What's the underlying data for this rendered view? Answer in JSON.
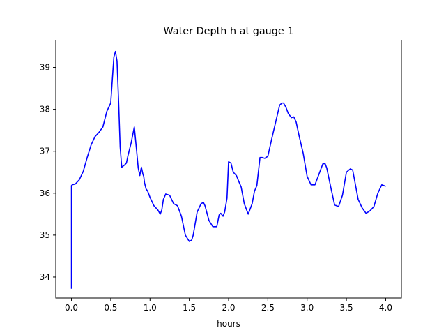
{
  "chart_data": {
    "type": "line",
    "title": "Water Depth h at gauge 1",
    "xlabel": "hours",
    "ylabel": "",
    "xlim": [
      -0.2,
      4.2
    ],
    "ylim": [
      33.5,
      39.65
    ],
    "xticks": [
      0.0,
      0.5,
      1.0,
      1.5,
      2.0,
      2.5,
      3.0,
      3.5,
      4.0
    ],
    "xtick_labels": [
      "0.0",
      "0.5",
      "1.0",
      "1.5",
      "2.0",
      "2.5",
      "3.0",
      "3.5",
      "4.0"
    ],
    "yticks": [
      34,
      35,
      36,
      37,
      38,
      39
    ],
    "ytick_labels": [
      "34",
      "35",
      "36",
      "37",
      "38",
      "39"
    ],
    "grid": false,
    "legend": "none",
    "series": [
      {
        "color": "#0000ff",
        "x": [
          0.0,
          0.0,
          0.01,
          0.05,
          0.1,
          0.15,
          0.2,
          0.25,
          0.3,
          0.35,
          0.4,
          0.45,
          0.5,
          0.52,
          0.54,
          0.56,
          0.58,
          0.6,
          0.62,
          0.64,
          0.66,
          0.68,
          0.7,
          0.72,
          0.74,
          0.76,
          0.8,
          0.83,
          0.85,
          0.87,
          0.89,
          0.91,
          0.92,
          0.93,
          0.95,
          0.97,
          1.0,
          1.05,
          1.1,
          1.13,
          1.15,
          1.17,
          1.2,
          1.25,
          1.3,
          1.35,
          1.4,
          1.45,
          1.5,
          1.53,
          1.55,
          1.6,
          1.65,
          1.68,
          1.7,
          1.75,
          1.8,
          1.85,
          1.88,
          1.9,
          1.93,
          1.95,
          1.98,
          2.0,
          2.03,
          2.06,
          2.1,
          2.13,
          2.16,
          2.2,
          2.25,
          2.3,
          2.33,
          2.36,
          2.4,
          2.43,
          2.46,
          2.5,
          2.55,
          2.6,
          2.65,
          2.68,
          2.7,
          2.73,
          2.76,
          2.8,
          2.83,
          2.86,
          2.9,
          2.95,
          3.0,
          3.05,
          3.1,
          3.15,
          3.2,
          3.23,
          3.25,
          3.3,
          3.35,
          3.4,
          3.45,
          3.5,
          3.55,
          3.58,
          3.6,
          3.65,
          3.7,
          3.75,
          3.8,
          3.85,
          3.9,
          3.95,
          3.98,
          4.0
        ],
        "values": [
          33.72,
          36.18,
          36.2,
          36.22,
          36.32,
          36.52,
          36.85,
          37.15,
          37.35,
          37.45,
          37.58,
          37.95,
          38.15,
          38.7,
          39.25,
          39.38,
          39.15,
          38.2,
          37.1,
          36.62,
          36.65,
          36.68,
          36.72,
          36.9,
          37.05,
          37.2,
          37.58,
          37.0,
          36.6,
          36.42,
          36.62,
          36.45,
          36.4,
          36.25,
          36.1,
          36.05,
          35.9,
          35.7,
          35.6,
          35.5,
          35.6,
          35.85,
          35.98,
          35.95,
          35.75,
          35.7,
          35.45,
          35.0,
          34.85,
          34.88,
          35.0,
          35.55,
          35.75,
          35.78,
          35.7,
          35.35,
          35.2,
          35.2,
          35.48,
          35.52,
          35.45,
          35.55,
          35.88,
          36.75,
          36.72,
          36.5,
          36.42,
          36.28,
          36.15,
          35.75,
          35.5,
          35.75,
          36.05,
          36.18,
          36.85,
          36.85,
          36.83,
          36.88,
          37.3,
          37.7,
          38.1,
          38.15,
          38.15,
          38.05,
          37.9,
          37.8,
          37.82,
          37.7,
          37.35,
          36.95,
          36.4,
          36.2,
          36.2,
          36.45,
          36.7,
          36.7,
          36.6,
          36.15,
          35.72,
          35.68,
          35.95,
          36.5,
          36.58,
          36.55,
          36.35,
          35.85,
          35.65,
          35.52,
          35.58,
          35.68,
          36.0,
          36.2,
          36.18,
          36.16
        ]
      }
    ]
  }
}
